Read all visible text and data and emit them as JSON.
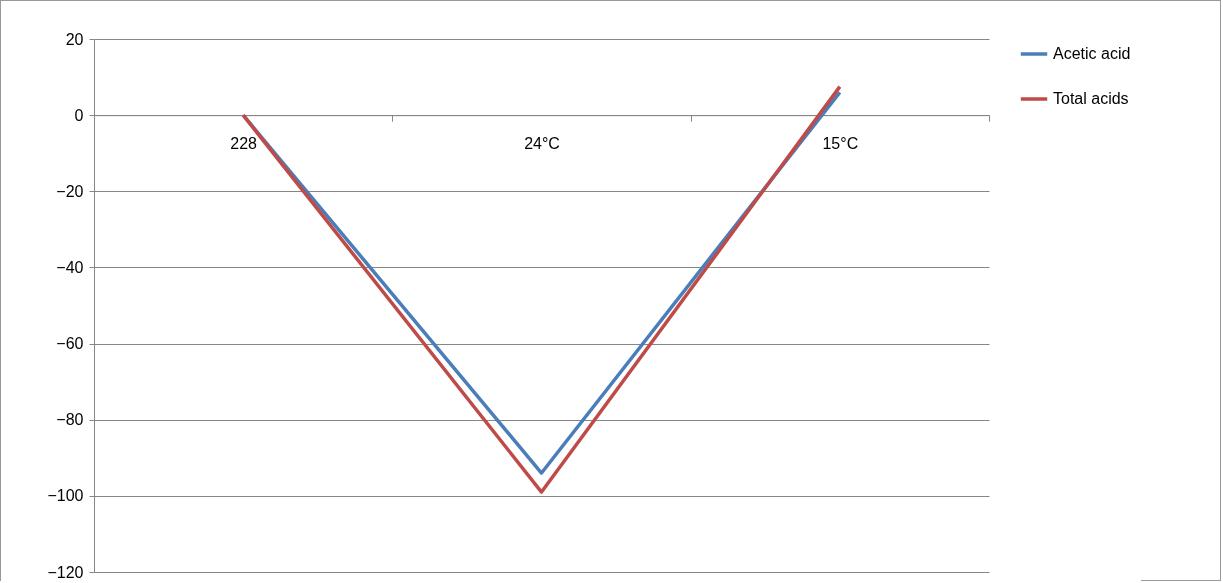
{
  "chart_data": {
    "type": "line",
    "categories": [
      "228",
      "24°C",
      "15°C"
    ],
    "series": [
      {
        "name": "Acetic acid",
        "color": "#4a7ebb",
        "values": [
          0,
          -94,
          6
        ]
      },
      {
        "name": "Total acids",
        "color": "#be4b48",
        "values": [
          0,
          -99,
          7.5
        ]
      }
    ],
    "ylim": [
      -120,
      20
    ],
    "yticks": [
      -120,
      -100,
      -80,
      -60,
      -40,
      -20,
      0,
      20
    ],
    "grid": "y",
    "legend": "right"
  }
}
